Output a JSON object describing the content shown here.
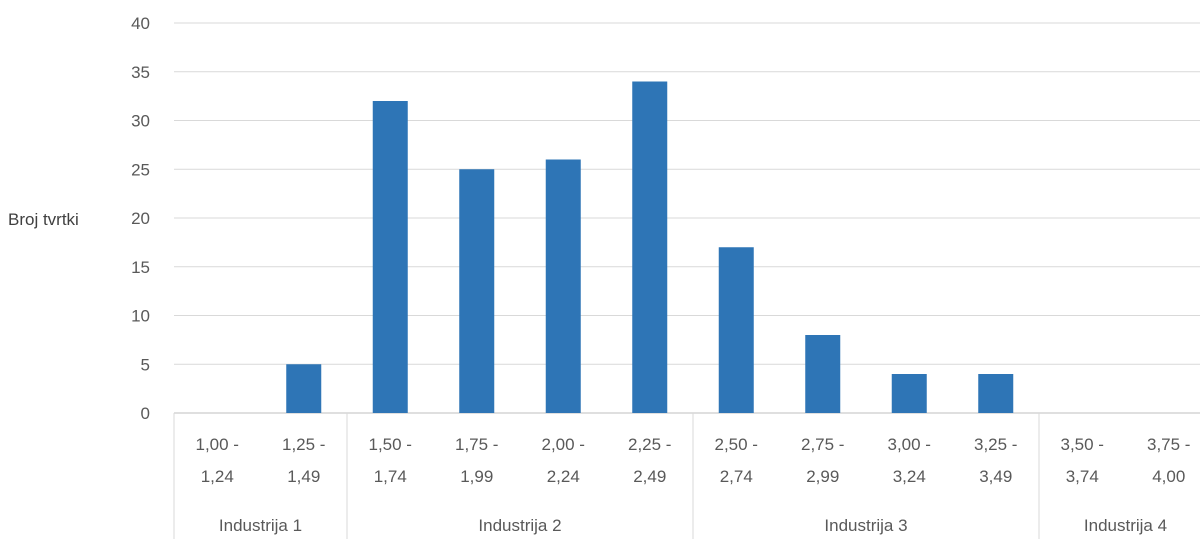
{
  "chart_data": {
    "type": "bar",
    "ylabel": "Broj tvrtki",
    "ylim": [
      0,
      40
    ],
    "yticks": [
      0,
      5,
      10,
      15,
      20,
      25,
      30,
      35,
      40
    ],
    "grid": true,
    "color": "#2e75b6",
    "categories": [
      [
        "1,00 -",
        "1,24"
      ],
      [
        "1,25 -",
        "1,49"
      ],
      [
        "1,50 -",
        "1,74"
      ],
      [
        "1,75 -",
        "1,99"
      ],
      [
        "2,00 -",
        "2,24"
      ],
      [
        "2,25 -",
        "2,49"
      ],
      [
        "2,50 -",
        "2,74"
      ],
      [
        "2,75 -",
        "2,99"
      ],
      [
        "3,00 -",
        "3,24"
      ],
      [
        "3,25 -",
        "3,49"
      ],
      [
        "3,50 -",
        "3,74"
      ],
      [
        "3,75 -",
        "4,00"
      ]
    ],
    "values": [
      0,
      5,
      32,
      25,
      26,
      34,
      17,
      8,
      4,
      4,
      0,
      0
    ],
    "groups": [
      {
        "label": "Industrija 1",
        "start": 0,
        "end": 1
      },
      {
        "label": "Industrija 2",
        "start": 2,
        "end": 5
      },
      {
        "label": "Industrija 3",
        "start": 6,
        "end": 9
      },
      {
        "label": "Industrija 4",
        "start": 10,
        "end": 11
      }
    ]
  }
}
